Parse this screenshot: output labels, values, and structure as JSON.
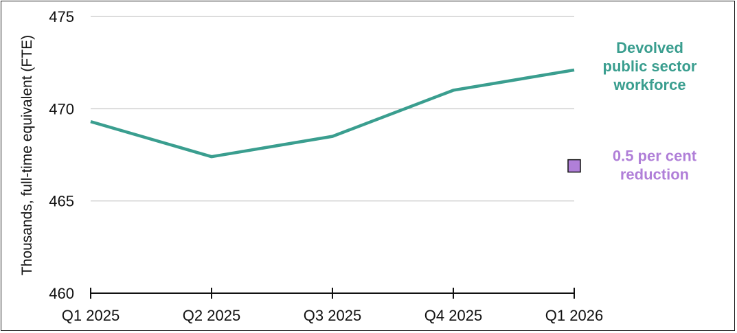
{
  "chart_data": {
    "type": "line",
    "ylabel": "Thousands, full-time equivalent (FTE)",
    "categories": [
      "Q1 2025",
      "Q2 2025",
      "Q3 2025",
      "Q4 2025",
      "Q1 2026"
    ],
    "ylim": [
      460,
      475
    ],
    "yticks": [
      "460",
      "465",
      "470",
      "475"
    ],
    "grid": true,
    "series": [
      {
        "name": "Devolved public sector workforce",
        "label_lines": [
          "Devolved",
          "public sector",
          "workforce"
        ],
        "values": [
          469.3,
          467.4,
          468.5,
          471.0,
          472.1
        ],
        "color": "#3a9e8f"
      }
    ],
    "point_annotation": {
      "category": "Q1 2026",
      "value": 466.9,
      "label_lines": [
        "0.5 per cent",
        "reduction"
      ],
      "marker": "square",
      "fill": "#b07fd8",
      "label_color": "#b07fd8"
    },
    "colors": {
      "grid": "#d0d0d0",
      "axis": "#111111"
    }
  }
}
